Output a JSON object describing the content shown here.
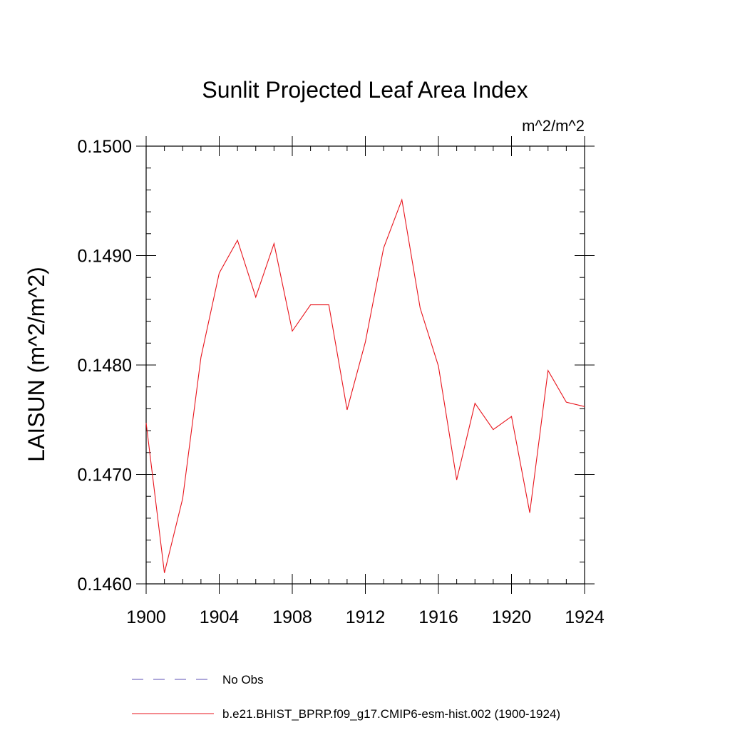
{
  "chart_data": {
    "type": "line",
    "title": "Sunlit Projected Leaf Area Index",
    "units_label": "m^2/m^2",
    "ylabel": "LAISUN  (m^2/m^2)",
    "xlabel": "",
    "xlim": [
      1900,
      1924
    ],
    "ylim": [
      0.146,
      0.15
    ],
    "x_ticks": [
      1900,
      1904,
      1908,
      1912,
      1916,
      1920,
      1924
    ],
    "x_tick_labels": [
      "1900",
      "1904",
      "1908",
      "1912",
      "1916",
      "1920",
      "1924"
    ],
    "y_ticks": [
      0.146,
      0.147,
      0.148,
      0.149,
      0.15
    ],
    "y_tick_labels": [
      "0.1460",
      "0.1470",
      "0.1480",
      "0.1490",
      "0.1500"
    ],
    "x_minor_step": 1,
    "y_minor_step": 0.0002,
    "grid": false,
    "series": [
      {
        "name": "b.e21.BHIST_BPRP.f09_g17.CMIP6-esm-hist.002 (1900-1924)",
        "color": "#e8141c",
        "x": [
          1900,
          1901,
          1902,
          1903,
          1904,
          1905,
          1906,
          1907,
          1908,
          1909,
          1910,
          1911,
          1912,
          1913,
          1914,
          1915,
          1916,
          1917,
          1918,
          1919,
          1920,
          1921,
          1922,
          1923,
          1924
        ],
        "values": [
          0.14747,
          0.1461,
          0.14678,
          0.14807,
          0.14884,
          0.14914,
          0.14862,
          0.14911,
          0.14831,
          0.14855,
          0.14855,
          0.14759,
          0.14821,
          0.14907,
          0.14951,
          0.14852,
          0.14799,
          0.14695,
          0.14765,
          0.14741,
          0.14753,
          0.14665,
          0.14795,
          0.14766,
          0.14762
        ]
      }
    ],
    "legend": {
      "placement": "bottom",
      "entries": [
        {
          "label": "No Obs",
          "style": "dashed",
          "color": "#5b4fb5"
        },
        {
          "label": "b.e21.BHIST_BPRP.f09_g17.CMIP6-esm-hist.002 (1900-1924)",
          "style": "solid",
          "color": "#e8141c"
        }
      ]
    }
  }
}
